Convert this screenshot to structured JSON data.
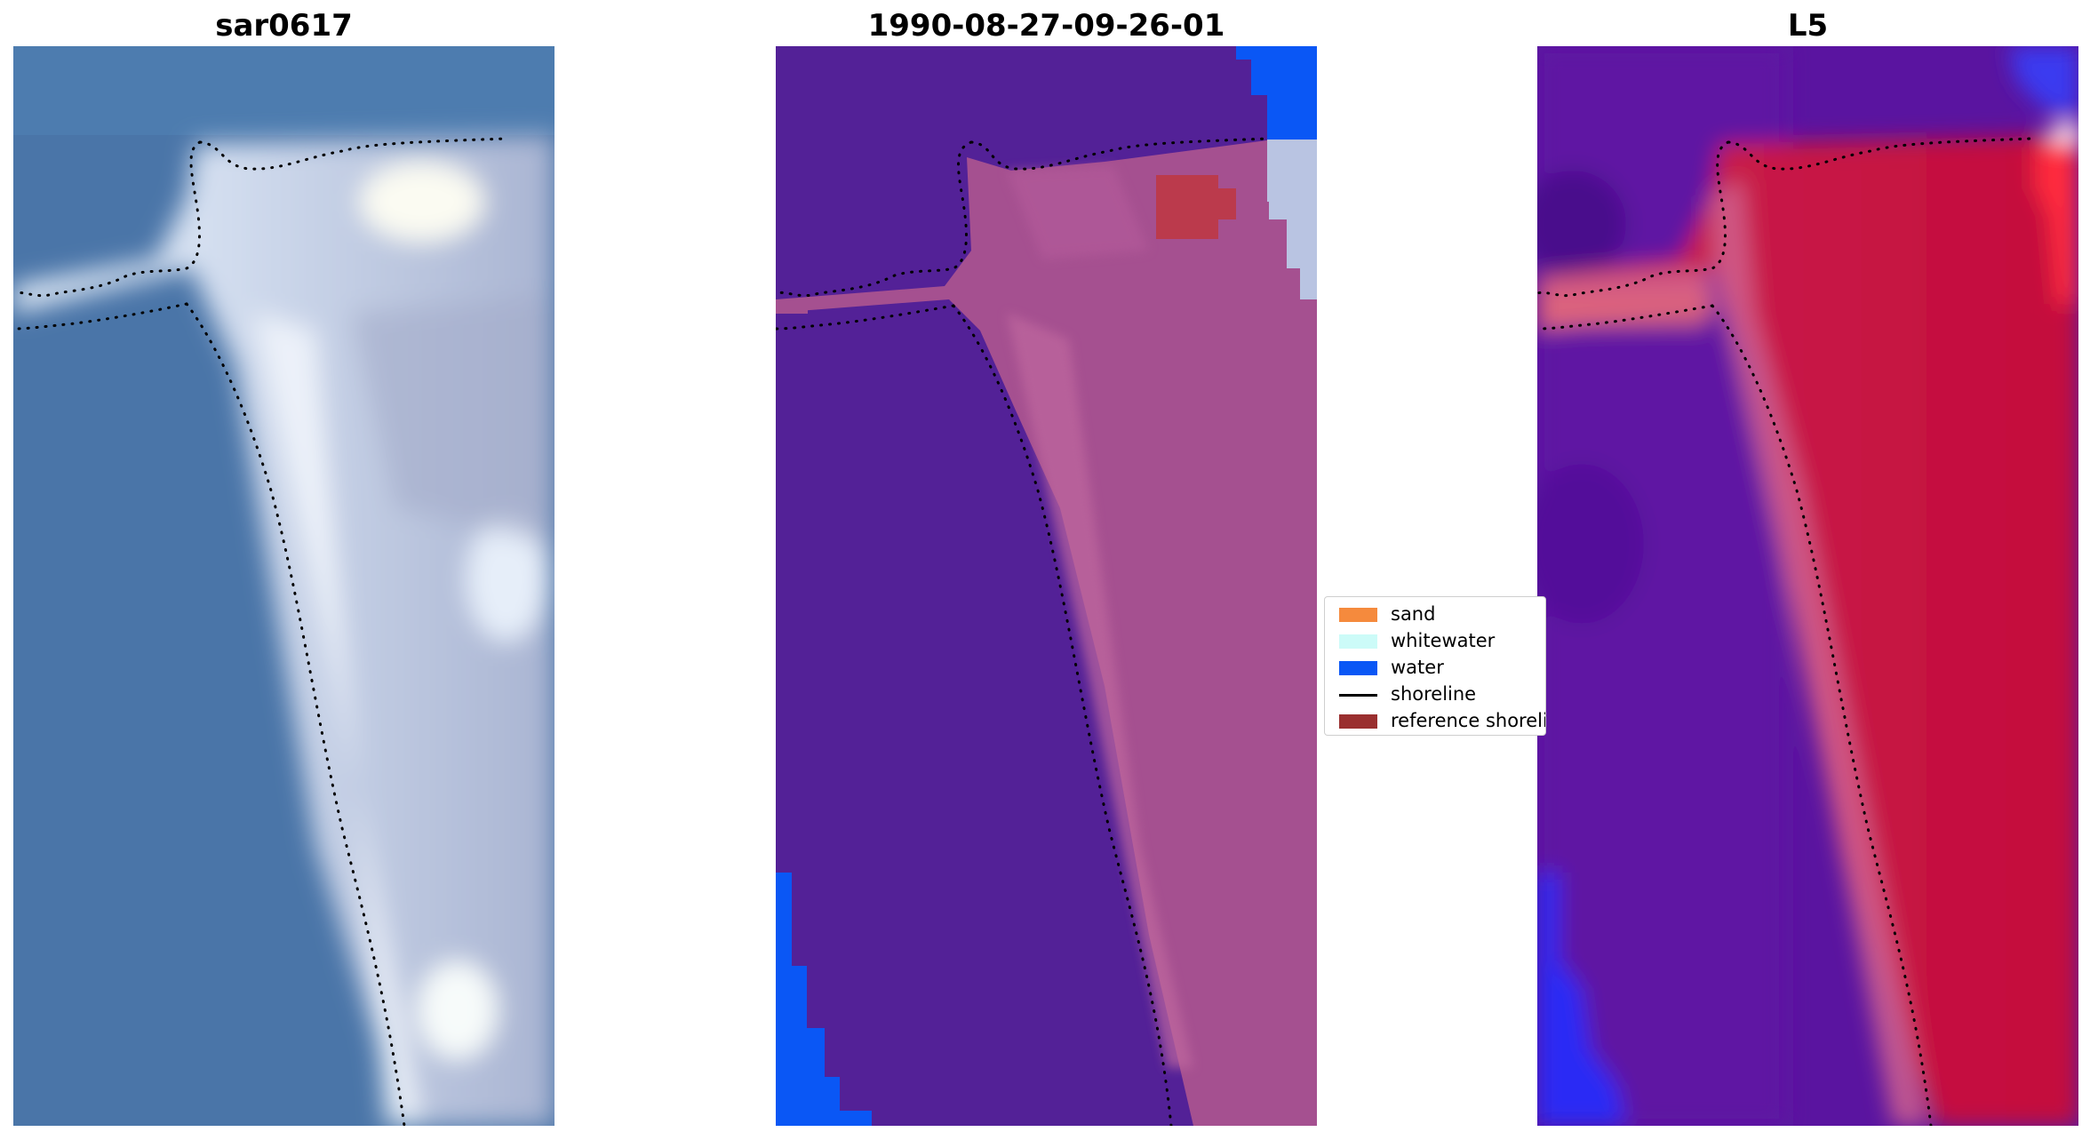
{
  "panels": [
    {
      "title": "sar0617"
    },
    {
      "title": "1990-08-27-09-26-01"
    },
    {
      "title": "L5"
    }
  ],
  "legend": {
    "items": [
      {
        "label": "sand",
        "color": "#f58a3d",
        "kind": "patch"
      },
      {
        "label": "whitewater",
        "color": "#ccfbf8",
        "kind": "patch"
      },
      {
        "label": "water",
        "color": "#0a57f5",
        "kind": "patch"
      },
      {
        "label": "shoreline",
        "color": "#000000",
        "kind": "line"
      },
      {
        "label": "reference shoreline",
        "color": "#9a2f2f",
        "kind": "patch"
      }
    ]
  },
  "colors": {
    "rgb_water": "#4a75a8",
    "rgb_sand": "#c9d4ec",
    "class_water_bg": "#532197",
    "class_sand_bg": "#a55090",
    "index_water_bg": "#5a14a0",
    "index_sand_bg": "#c40a3c"
  }
}
